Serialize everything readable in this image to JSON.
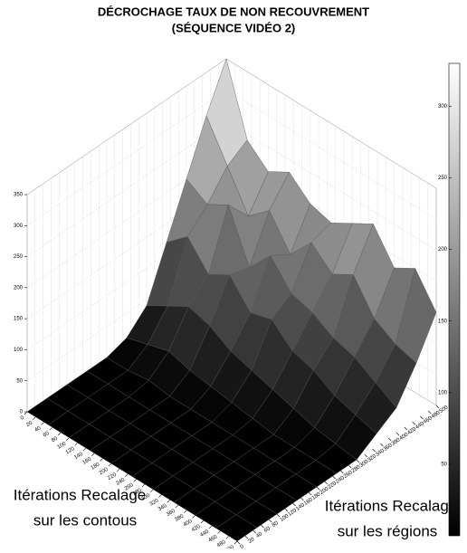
{
  "chart_data": {
    "type": "surface",
    "title": [
      "DÉCROCHAGE TAUX DE NON RECOUVREMENT",
      "(SÉQUENCE VIDÉO 2)"
    ],
    "xlabel": [
      "Itérations Recalage",
      "sur les contous"
    ],
    "ylabel": [
      "Itérations Recalage",
      "sur les régions"
    ],
    "x": [
      0,
      50,
      100,
      150,
      200,
      250,
      300,
      350,
      400,
      450,
      500
    ],
    "y": [
      0,
      50,
      100,
      150,
      200,
      250,
      300,
      350,
      400,
      450,
      500
    ],
    "z": [
      [
        0,
        0,
        0,
        0,
        0,
        10,
        40,
        120,
        200,
        280,
        350
      ],
      [
        0,
        0,
        0,
        0,
        0,
        20,
        60,
        150,
        180,
        220,
        240
      ],
      [
        0,
        0,
        0,
        0,
        5,
        30,
        80,
        110,
        200,
        160,
        210
      ],
      [
        0,
        0,
        0,
        0,
        0,
        20,
        70,
        130,
        120,
        190,
        230
      ],
      [
        0,
        0,
        0,
        0,
        0,
        15,
        50,
        90,
        160,
        140,
        200
      ],
      [
        0,
        0,
        0,
        0,
        0,
        10,
        40,
        100,
        120,
        180,
        190
      ],
      [
        0,
        0,
        0,
        0,
        0,
        5,
        30,
        70,
        110,
        150,
        210
      ],
      [
        0,
        0,
        0,
        0,
        0,
        0,
        20,
        60,
        90,
        170,
        230
      ],
      [
        0,
        0,
        0,
        0,
        0,
        0,
        10,
        40,
        80,
        120,
        180
      ],
      [
        0,
        0,
        0,
        0,
        0,
        0,
        5,
        30,
        60,
        100,
        200
      ],
      [
        0,
        0,
        0,
        0,
        0,
        0,
        0,
        20,
        40,
        90,
        150
      ]
    ],
    "xlim": [
      0,
      500
    ],
    "ylim": [
      0,
      500
    ],
    "zlim": [
      0,
      350
    ],
    "xticks": [
      0,
      20,
      40,
      60,
      80,
      100,
      120,
      140,
      160,
      180,
      200,
      220,
      240,
      260,
      280,
      300,
      320,
      340,
      360,
      380,
      400,
      420,
      440,
      460,
      480,
      500
    ],
    "yticks": [
      0,
      20,
      40,
      60,
      80,
      100,
      120,
      140,
      160,
      180,
      200,
      220,
      240,
      260,
      280,
      300,
      320,
      340,
      360,
      380,
      400,
      420,
      440,
      460,
      480,
      500
    ],
    "zticks": [
      0,
      50,
      100,
      150,
      200,
      250,
      300,
      350
    ],
    "colormap": "gray",
    "clim": [
      0,
      330
    ],
    "cticks": [
      50,
      100,
      150,
      200,
      250,
      300
    ],
    "grid": true
  }
}
